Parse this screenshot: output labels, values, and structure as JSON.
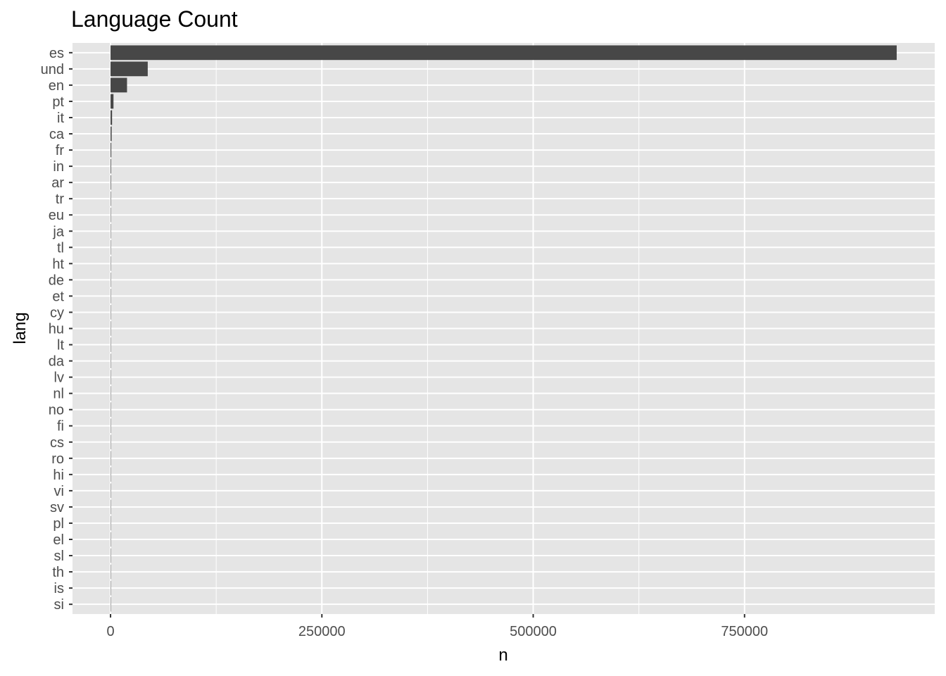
{
  "chart_data": {
    "type": "bar",
    "orientation": "horizontal",
    "title": "Language Count",
    "xlabel": "n",
    "ylabel": "lang",
    "categories": [
      "es",
      "und",
      "en",
      "pt",
      "it",
      "ca",
      "fr",
      "in",
      "ar",
      "tr",
      "eu",
      "ja",
      "tl",
      "ht",
      "de",
      "et",
      "cy",
      "hu",
      "lt",
      "da",
      "lv",
      "nl",
      "no",
      "fi",
      "cs",
      "ro",
      "hi",
      "vi",
      "sv",
      "pl",
      "el",
      "sl",
      "th",
      "is",
      "si"
    ],
    "values": [
      930000,
      44000,
      19500,
      3500,
      1800,
      1300,
      900,
      700,
      600,
      500,
      450,
      380,
      300,
      260,
      230,
      200,
      170,
      150,
      130,
      120,
      110,
      100,
      90,
      80,
      70,
      60,
      55,
      50,
      45,
      40,
      35,
      30,
      25,
      20,
      15
    ],
    "xlim": [
      -45000,
      975000
    ],
    "x_ticks": [
      0,
      250000,
      500000,
      750000
    ],
    "x_tick_labels": [
      "0",
      "250000",
      "500000",
      "750000"
    ],
    "grid": true,
    "colors": {
      "bar": "#474747",
      "panel": "#e5e5e5",
      "grid": "#ffffff"
    }
  }
}
